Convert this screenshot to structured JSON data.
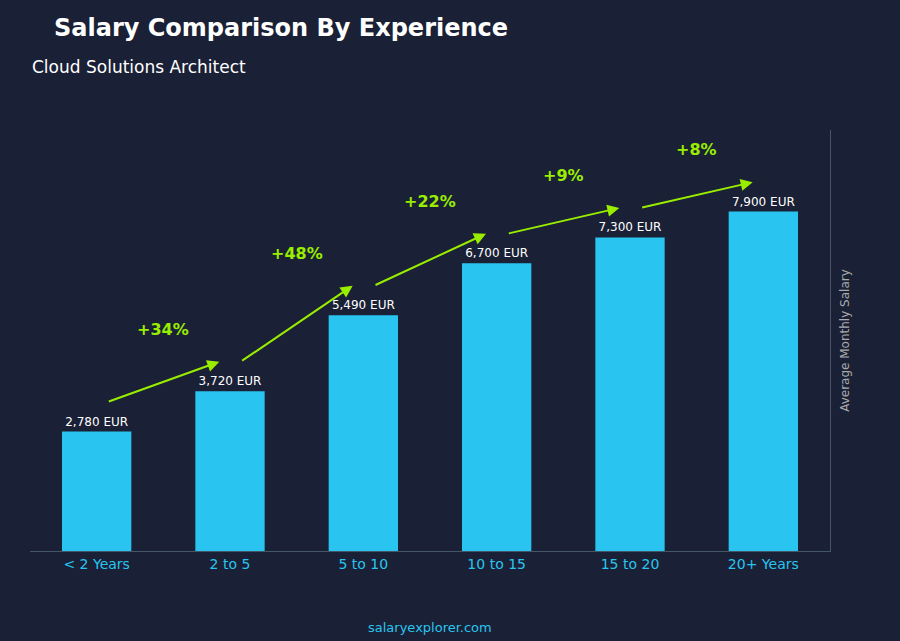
{
  "chart_data": {
    "type": "bar",
    "title": "Salary Comparison By Experience",
    "subtitle": "Cloud Solutions Architect",
    "ylabel": "Average Monthly Salary",
    "footer": "salaryexplorer.com",
    "categories": [
      "< 2 Years",
      "2 to 5",
      "5 to 10",
      "10 to 15",
      "15 to 20",
      "20+ Years"
    ],
    "values": [
      2780,
      3720,
      5490,
      6700,
      7300,
      7900
    ],
    "value_labels": [
      "2,780 EUR",
      "3,720 EUR",
      "5,490 EUR",
      "6,700 EUR",
      "7,300 EUR",
      "7,900 EUR"
    ],
    "data_labels": true,
    "color": "#29c5f0",
    "ylim": [
      0,
      9800
    ],
    "tick_labels": "x",
    "grid": false,
    "annotations": [
      "+34%",
      "+48%",
      "+22%",
      "+9%",
      "+8%"
    ]
  }
}
